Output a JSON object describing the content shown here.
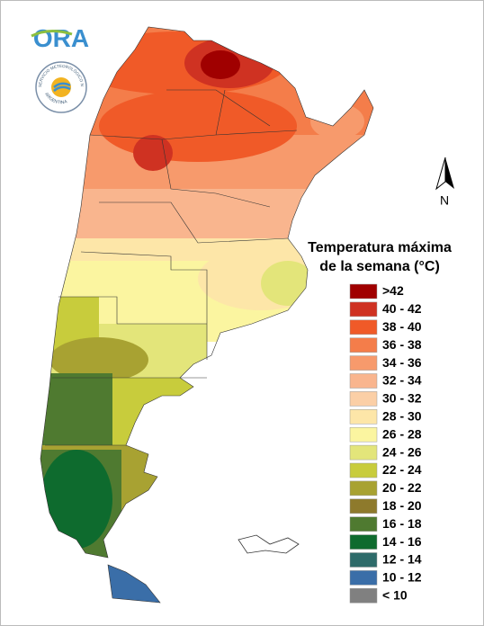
{
  "logo": {
    "text": "ORA",
    "seal_text": "SERVICIO METEOROLÓGICO NACIONAL",
    "seal_subtext": "ARGENTINA"
  },
  "north_label": "N",
  "legend": {
    "title": [
      "Temperatura máxima",
      "de la semana (°C)"
    ],
    "items": [
      {
        "label": ">42",
        "color": "#a00000"
      },
      {
        "label": "40 - 42",
        "color": "#cf3222"
      },
      {
        "label": "38 - 40",
        "color": "#f05a28"
      },
      {
        "label": "36 - 38",
        "color": "#f47d4a"
      },
      {
        "label": "34 - 36",
        "color": "#f79a6c"
      },
      {
        "label": "32 - 34",
        "color": "#f9b58e"
      },
      {
        "label": "30 - 32",
        "color": "#fbcfa6"
      },
      {
        "label": "28 - 30",
        "color": "#fde6a8"
      },
      {
        "label": "26 - 28",
        "color": "#fbf5a0"
      },
      {
        "label": "24 - 26",
        "color": "#e3e57a"
      },
      {
        "label": "22 - 24",
        "color": "#c8cc3c"
      },
      {
        "label": "20 - 22",
        "color": "#a8a232"
      },
      {
        "label": "18 - 20",
        "color": "#8e7a2c"
      },
      {
        "label": "16 - 18",
        "color": "#4f7a30"
      },
      {
        "label": "14 - 16",
        "color": "#0e6b2e"
      },
      {
        "label": "12 - 14",
        "color": "#2e6b6a"
      },
      {
        "label": "10 - 12",
        "color": "#3a6ea8"
      },
      {
        "label": "< 10",
        "color": "#808080"
      }
    ]
  }
}
